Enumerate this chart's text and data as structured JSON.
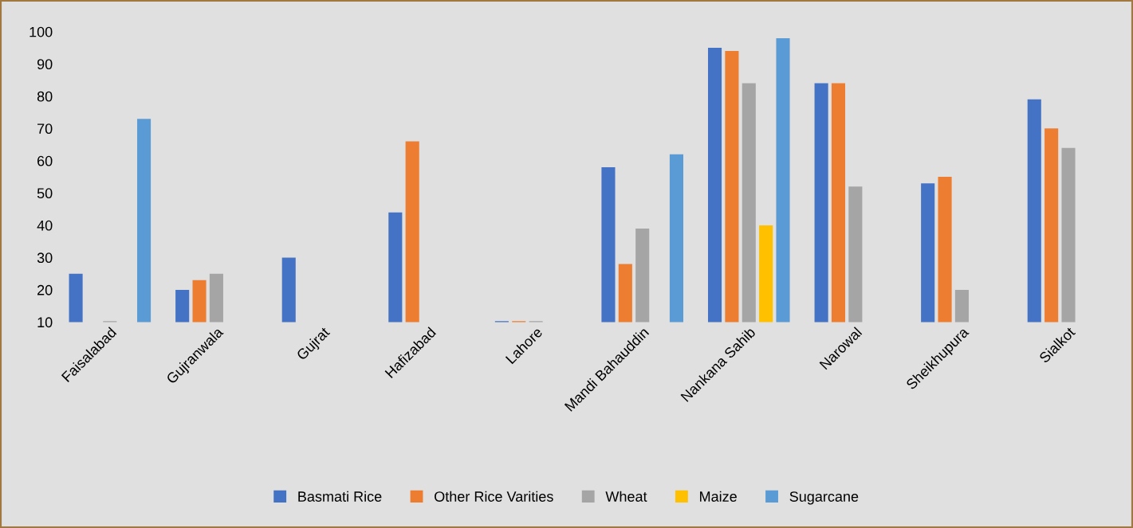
{
  "chart_data": {
    "type": "bar",
    "categories": [
      "Faisalabad",
      "Gujranwala",
      "Gujrat",
      "Hafizabad",
      "Lahore",
      "Mandi Bahauddin",
      "Nankana Sahib",
      "Narowal",
      "Sheikhupura",
      "Sialkot"
    ],
    "series": [
      {
        "name": "Basmati Rice",
        "color": "#4472c4",
        "values": [
          25,
          20,
          30,
          44,
          10.3,
          58,
          95,
          84,
          53,
          79
        ]
      },
      {
        "name": "Other Rice Varities",
        "color": "#ed7d31",
        "values": [
          null,
          23,
          null,
          66,
          10.3,
          28,
          94,
          84,
          55,
          70
        ]
      },
      {
        "name": "Wheat",
        "color": "#a5a5a5",
        "values": [
          10.3,
          25,
          null,
          null,
          10.3,
          39,
          84,
          52,
          20,
          64
        ]
      },
      {
        "name": "Maize",
        "color": "#ffc000",
        "values": [
          null,
          null,
          null,
          null,
          null,
          null,
          40,
          null,
          null,
          null
        ]
      },
      {
        "name": "Sugarcane",
        "color": "#5b9bd5",
        "values": [
          73,
          null,
          null,
          null,
          null,
          62,
          98,
          null,
          null,
          null
        ]
      }
    ],
    "ylim": [
      10,
      100
    ],
    "yticks": [
      10,
      20,
      30,
      40,
      50,
      60,
      70,
      80,
      90,
      100
    ],
    "grid": false,
    "legend": "bottom"
  }
}
